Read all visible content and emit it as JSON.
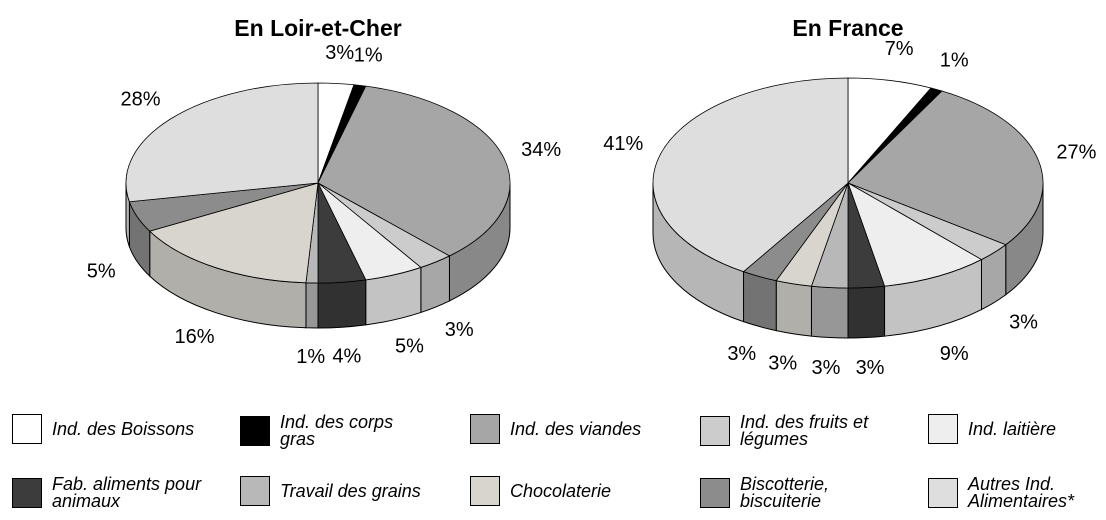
{
  "chart_data": {
    "type": "pie",
    "categories": [
      "Ind. des Boissons",
      "Ind. des corps gras",
      "Ind. des viandes",
      "Ind. des fruits et légumes",
      "Ind. laitière",
      "Fab. aliments pour animaux",
      "Travail des grains",
      "Chocolaterie",
      "Biscotterie, biscuiterie",
      "Autres Ind. Alimentaires*"
    ],
    "colors": [
      "#ffffff",
      "#000000",
      "#a6a6a6",
      "#cccccc",
      "#eeeeee",
      "#3c3c3c",
      "#b8b8b8",
      "#d8d5ce",
      "#8c8c8c",
      "#dedede"
    ],
    "series": [
      {
        "name": "En Loir-et-Cher",
        "values": [
          3,
          1,
          34,
          3,
          5,
          4,
          1,
          16,
          5,
          28
        ],
        "value_labels": [
          "3%",
          "1%",
          "34%",
          "3%",
          "5%",
          "4%",
          "1%",
          "16%",
          "5%",
          "28%"
        ]
      },
      {
        "name": "En France",
        "values": [
          7,
          1,
          27,
          3,
          9,
          3,
          3,
          3,
          3,
          41
        ],
        "value_labels": [
          "7%",
          "1%",
          "27%",
          "3%",
          "9%",
          "3%",
          "3%",
          "3%",
          "3%",
          "41%"
        ]
      }
    ]
  }
}
